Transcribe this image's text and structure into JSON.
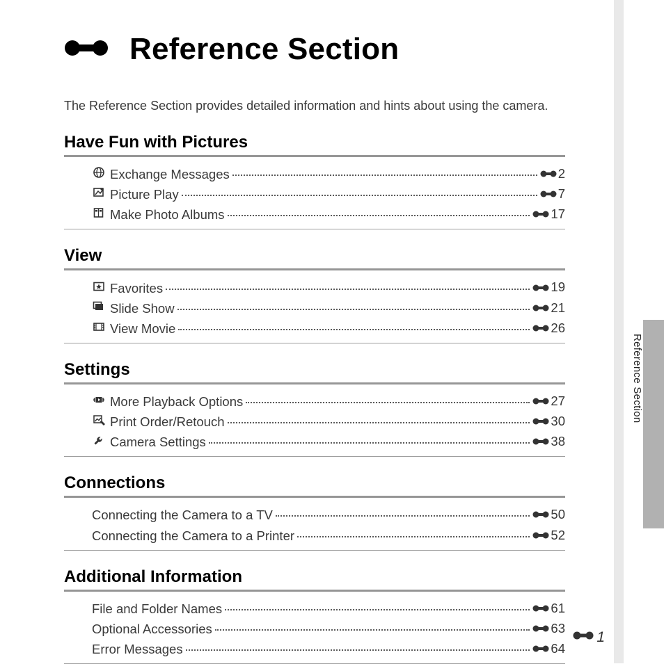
{
  "title": "Reference Section",
  "intro": "The Reference Section provides detailed information and hints about using the camera.",
  "side_label": "Reference Section",
  "page_number": "1",
  "colors": {
    "rule": "#969696",
    "rule_thin": "#9e9e9e",
    "text": "#3a3a3a",
    "side_tab": "#b1b1b1",
    "side_strip": "#e9e9e9"
  },
  "typography": {
    "title_fontsize": 44,
    "section_fontsize": 24,
    "body_fontsize": 18.5,
    "intro_fontsize": 18,
    "side_fontsize": 15
  },
  "sections": [
    {
      "title": "Have Fun with Pictures",
      "items": [
        {
          "icon": "globe",
          "label": "Exchange Messages",
          "page": "2"
        },
        {
          "icon": "picture-edit",
          "label": "Picture Play",
          "page": "7"
        },
        {
          "icon": "album",
          "label": "Make Photo Albums",
          "page": "17"
        }
      ]
    },
    {
      "title": "View",
      "items": [
        {
          "icon": "favorites",
          "label": "Favorites",
          "page": "19"
        },
        {
          "icon": "slideshow",
          "label": "Slide Show",
          "page": "21"
        },
        {
          "icon": "movie",
          "label": "View Movie",
          "page": "26"
        }
      ]
    },
    {
      "title": "Settings",
      "items": [
        {
          "icon": "playback",
          "label": "More Playback Options",
          "page": "27"
        },
        {
          "icon": "retouch",
          "label": "Print Order/Retouch",
          "page": "30"
        },
        {
          "icon": "wrench",
          "label": "Camera Settings",
          "page": "38"
        }
      ]
    },
    {
      "title": "Connections",
      "items": [
        {
          "icon": "",
          "label": "Connecting the Camera to a TV",
          "page": "50"
        },
        {
          "icon": "",
          "label": "Connecting the Camera to a Printer",
          "page": "52"
        }
      ]
    },
    {
      "title": "Additional Information",
      "items": [
        {
          "icon": "",
          "label": "File and Folder Names",
          "page": "61"
        },
        {
          "icon": "",
          "label": "Optional Accessories",
          "page": "63"
        },
        {
          "icon": "",
          "label": "Error Messages",
          "page": "64"
        }
      ]
    }
  ]
}
